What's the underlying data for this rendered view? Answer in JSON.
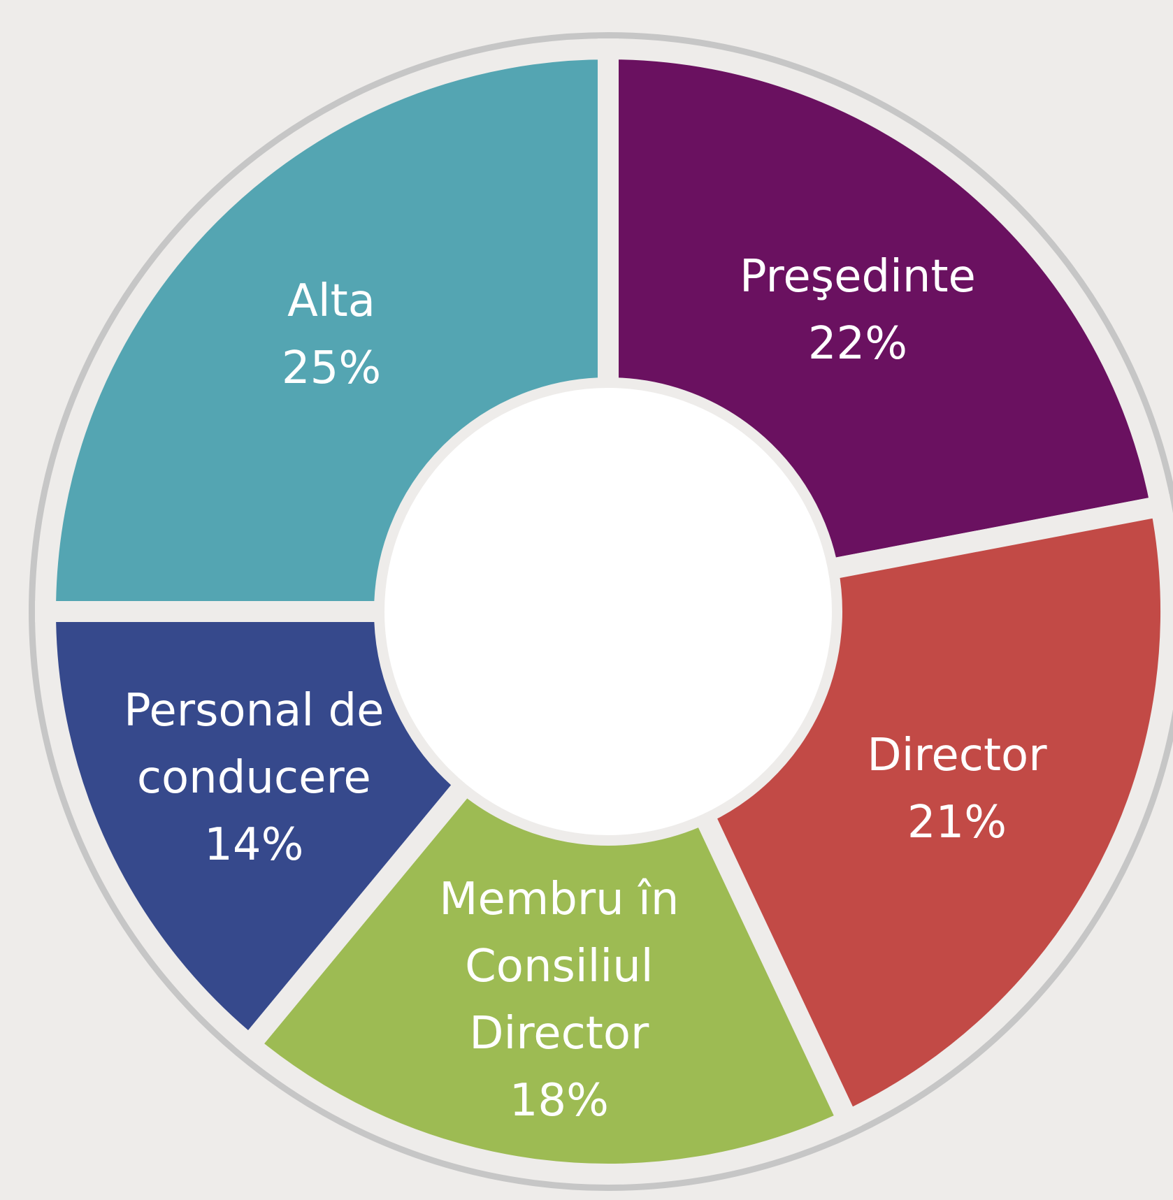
{
  "chart_data": {
    "type": "donut",
    "categories": [
      "Preşedinte",
      "Director",
      "Membru în Consiliul Director",
      "Personal de conducere",
      "Alta"
    ],
    "values": [
      22,
      21,
      18,
      14,
      25
    ],
    "value_labels": [
      "22%",
      "21%",
      "18%",
      "14%",
      "25%"
    ],
    "colors": [
      "#6a1160",
      "#c24a46",
      "#9dbb53",
      "#36498c",
      "#54a5b2"
    ]
  }
}
